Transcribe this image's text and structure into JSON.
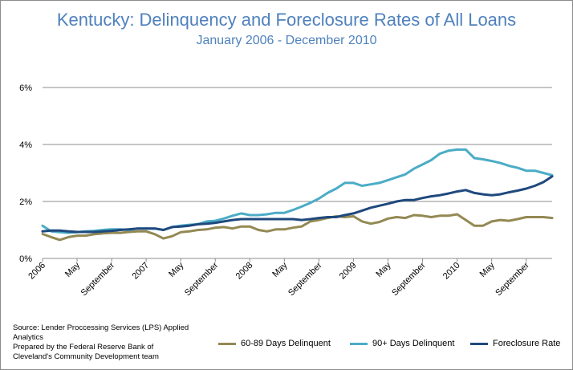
{
  "chart_data": {
    "type": "line",
    "title": "Kentucky: Delinquency and Foreclosure Rates of All Loans",
    "subtitle": "January 2006 - December 2010",
    "ylim": [
      0,
      6
    ],
    "yticks": [
      "0%",
      "2%",
      "4%",
      "6%"
    ],
    "ytick_values": [
      0,
      2,
      4,
      6
    ],
    "x_tick_labels": [
      {
        "i": 0,
        "label": "2006"
      },
      {
        "i": 4,
        "label": "May"
      },
      {
        "i": 8,
        "label": "September"
      },
      {
        "i": 12,
        "label": "2007"
      },
      {
        "i": 16,
        "label": "May"
      },
      {
        "i": 20,
        "label": "September"
      },
      {
        "i": 24,
        "label": "2008"
      },
      {
        "i": 28,
        "label": "May"
      },
      {
        "i": 32,
        "label": "September"
      },
      {
        "i": 36,
        "label": "2009"
      },
      {
        "i": 40,
        "label": "May"
      },
      {
        "i": 44,
        "label": "September"
      },
      {
        "i": 48,
        "label": "2010"
      },
      {
        "i": 52,
        "label": "May"
      },
      {
        "i": 56,
        "label": "September"
      }
    ],
    "n_points": 60,
    "grid": true,
    "legend_position": "bottom-right",
    "series": [
      {
        "name": "60-89 Days Delinquent",
        "color": "#938953",
        "values": [
          0.86,
          0.75,
          0.65,
          0.75,
          0.8,
          0.8,
          0.85,
          0.88,
          0.9,
          0.9,
          0.93,
          0.95,
          0.95,
          0.85,
          0.7,
          0.78,
          0.92,
          0.95,
          1.0,
          1.02,
          1.08,
          1.1,
          1.05,
          1.12,
          1.12,
          1.0,
          0.95,
          1.02,
          1.02,
          1.08,
          1.12,
          1.3,
          1.35,
          1.42,
          1.48,
          1.45,
          1.48,
          1.3,
          1.22,
          1.28,
          1.4,
          1.45,
          1.42,
          1.52,
          1.5,
          1.45,
          1.5,
          1.5,
          1.55,
          1.35,
          1.15,
          1.15,
          1.3,
          1.35,
          1.32,
          1.38,
          1.45,
          1.45,
          1.45,
          1.42
        ]
      },
      {
        "name": "90+ Days Delinquent",
        "color": "#4bacc6",
        "values": [
          1.15,
          0.95,
          0.92,
          0.9,
          0.92,
          0.95,
          0.97,
          1.0,
          1.02,
          1.02,
          1.0,
          1.05,
          1.05,
          1.05,
          1.0,
          1.1,
          1.15,
          1.18,
          1.2,
          1.3,
          1.32,
          1.4,
          1.5,
          1.58,
          1.52,
          1.52,
          1.55,
          1.6,
          1.6,
          1.7,
          1.82,
          1.95,
          2.1,
          2.3,
          2.45,
          2.65,
          2.65,
          2.55,
          2.6,
          2.65,
          2.75,
          2.85,
          2.95,
          3.15,
          3.3,
          3.45,
          3.68,
          3.78,
          3.82,
          3.82,
          3.52,
          3.48,
          3.42,
          3.35,
          3.25,
          3.18,
          3.08,
          3.08,
          3.0,
          2.92
        ]
      },
      {
        "name": "Foreclosure Rate",
        "color": "#1f497d",
        "values": [
          0.95,
          0.98,
          0.98,
          0.95,
          0.93,
          0.93,
          0.93,
          0.95,
          0.97,
          1.0,
          1.02,
          1.05,
          1.05,
          1.05,
          1.0,
          1.1,
          1.12,
          1.15,
          1.2,
          1.22,
          1.25,
          1.3,
          1.35,
          1.38,
          1.38,
          1.38,
          1.38,
          1.38,
          1.38,
          1.38,
          1.35,
          1.38,
          1.42,
          1.45,
          1.45,
          1.52,
          1.58,
          1.68,
          1.78,
          1.85,
          1.92,
          2.0,
          2.05,
          2.05,
          2.12,
          2.18,
          2.22,
          2.28,
          2.35,
          2.4,
          2.3,
          2.25,
          2.22,
          2.25,
          2.32,
          2.38,
          2.45,
          2.55,
          2.68,
          2.88
        ]
      }
    ]
  },
  "source_note": [
    "Source: Lender Proccessing Services (LPS) Applied",
    "Analytics",
    "Prepared by the Federal Reserve Bank of",
    "Cleveland's Community Development team"
  ]
}
